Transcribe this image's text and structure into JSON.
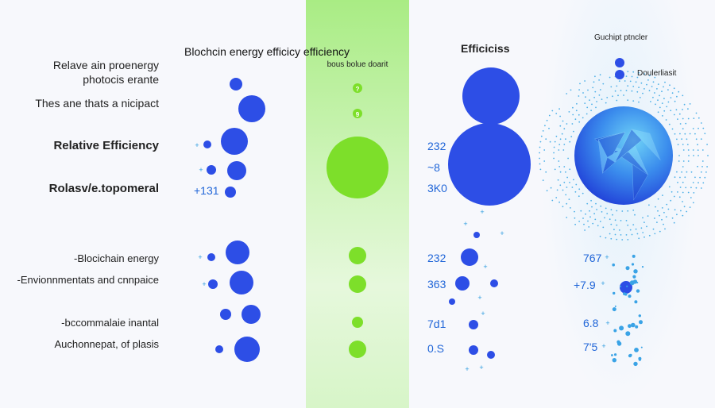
{
  "chart_data": {
    "type": "scatter",
    "title": "Blochcin energy efficicy efficiency",
    "column_titles": [
      "Blochcin energy efficicy efficiency",
      "bous bolue doarit",
      "Efficiciss",
      "Guchipt ptncler"
    ],
    "legend": "Doulerliasit",
    "left_labels": [
      "Relave ain proenergy",
      "photocis erante",
      "Thes ane thats a nicipact",
      "Relative Efficiency",
      "Rolasv/e.topomeral",
      "-Blocichain energy",
      "-Envionnmentats and cnnpaice",
      "-bccommalaie inantal",
      "Auchonnepat, of plasis"
    ],
    "value_labels": [
      "+131",
      "232",
      "~8",
      "3K0",
      "232",
      "363",
      "7d1",
      "0.S",
      "767",
      "+7.9",
      "6.8",
      "7'5"
    ],
    "green_marks": [
      "?",
      "9"
    ]
  },
  "colors": {
    "blue": "#2d4ee6",
    "green": "#7ddf2a",
    "cyan": "#2c9be0"
  }
}
